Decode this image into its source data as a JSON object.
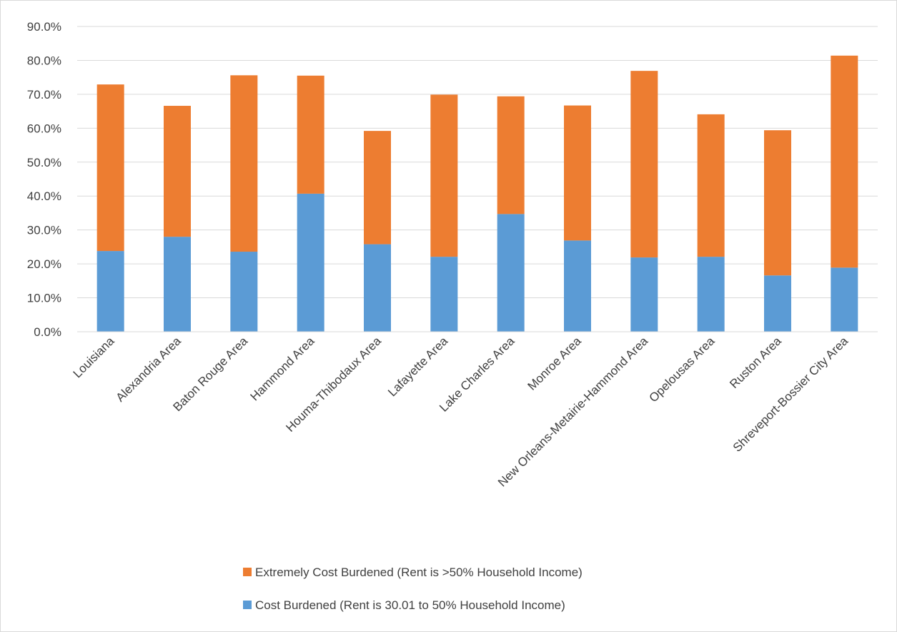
{
  "chart_data": {
    "type": "bar",
    "stacked": true,
    "categories": [
      "Louisiana",
      "Alexandria Area",
      "Baton Rouge Area",
      "Hammond Area",
      "Houma-Thibodaux Area",
      "Lafayette Area",
      "Lake Charles Area",
      "Monroe Area",
      "New Orleans-Metairie-Hammond Area",
      "Opelousas Area",
      "Ruston Area",
      "Shreveport-Bossier City Area"
    ],
    "series": [
      {
        "name": "Cost Burdened (Rent is 30.01 to 50% Household Income)",
        "color": "#5b9bd5",
        "values": [
          23.8,
          28.0,
          23.6,
          40.7,
          25.8,
          22.1,
          34.7,
          26.9,
          21.9,
          22.1,
          16.6,
          18.9
        ]
      },
      {
        "name": "Extremely Cost Burdened (Rent is >50% Household Income)",
        "color": "#ed7d31",
        "values": [
          49.1,
          38.6,
          52.0,
          34.8,
          33.4,
          47.8,
          34.7,
          39.8,
          55.0,
          42.0,
          42.8,
          62.5
        ]
      }
    ],
    "ylim": [
      0,
      90
    ],
    "yticks": [
      "0.0%",
      "10.0%",
      "20.0%",
      "30.0%",
      "40.0%",
      "50.0%",
      "60.0%",
      "70.0%",
      "80.0%",
      "90.0%"
    ],
    "grid": true,
    "legend_position": "bottom",
    "legend": [
      {
        "label": "Extremely Cost Burdened (Rent is >50% Household Income)",
        "color": "#ed7d31"
      },
      {
        "label": "Cost Burdened (Rent is 30.01 to 50% Household Income)",
        "color": "#5b9bd5"
      }
    ]
  }
}
